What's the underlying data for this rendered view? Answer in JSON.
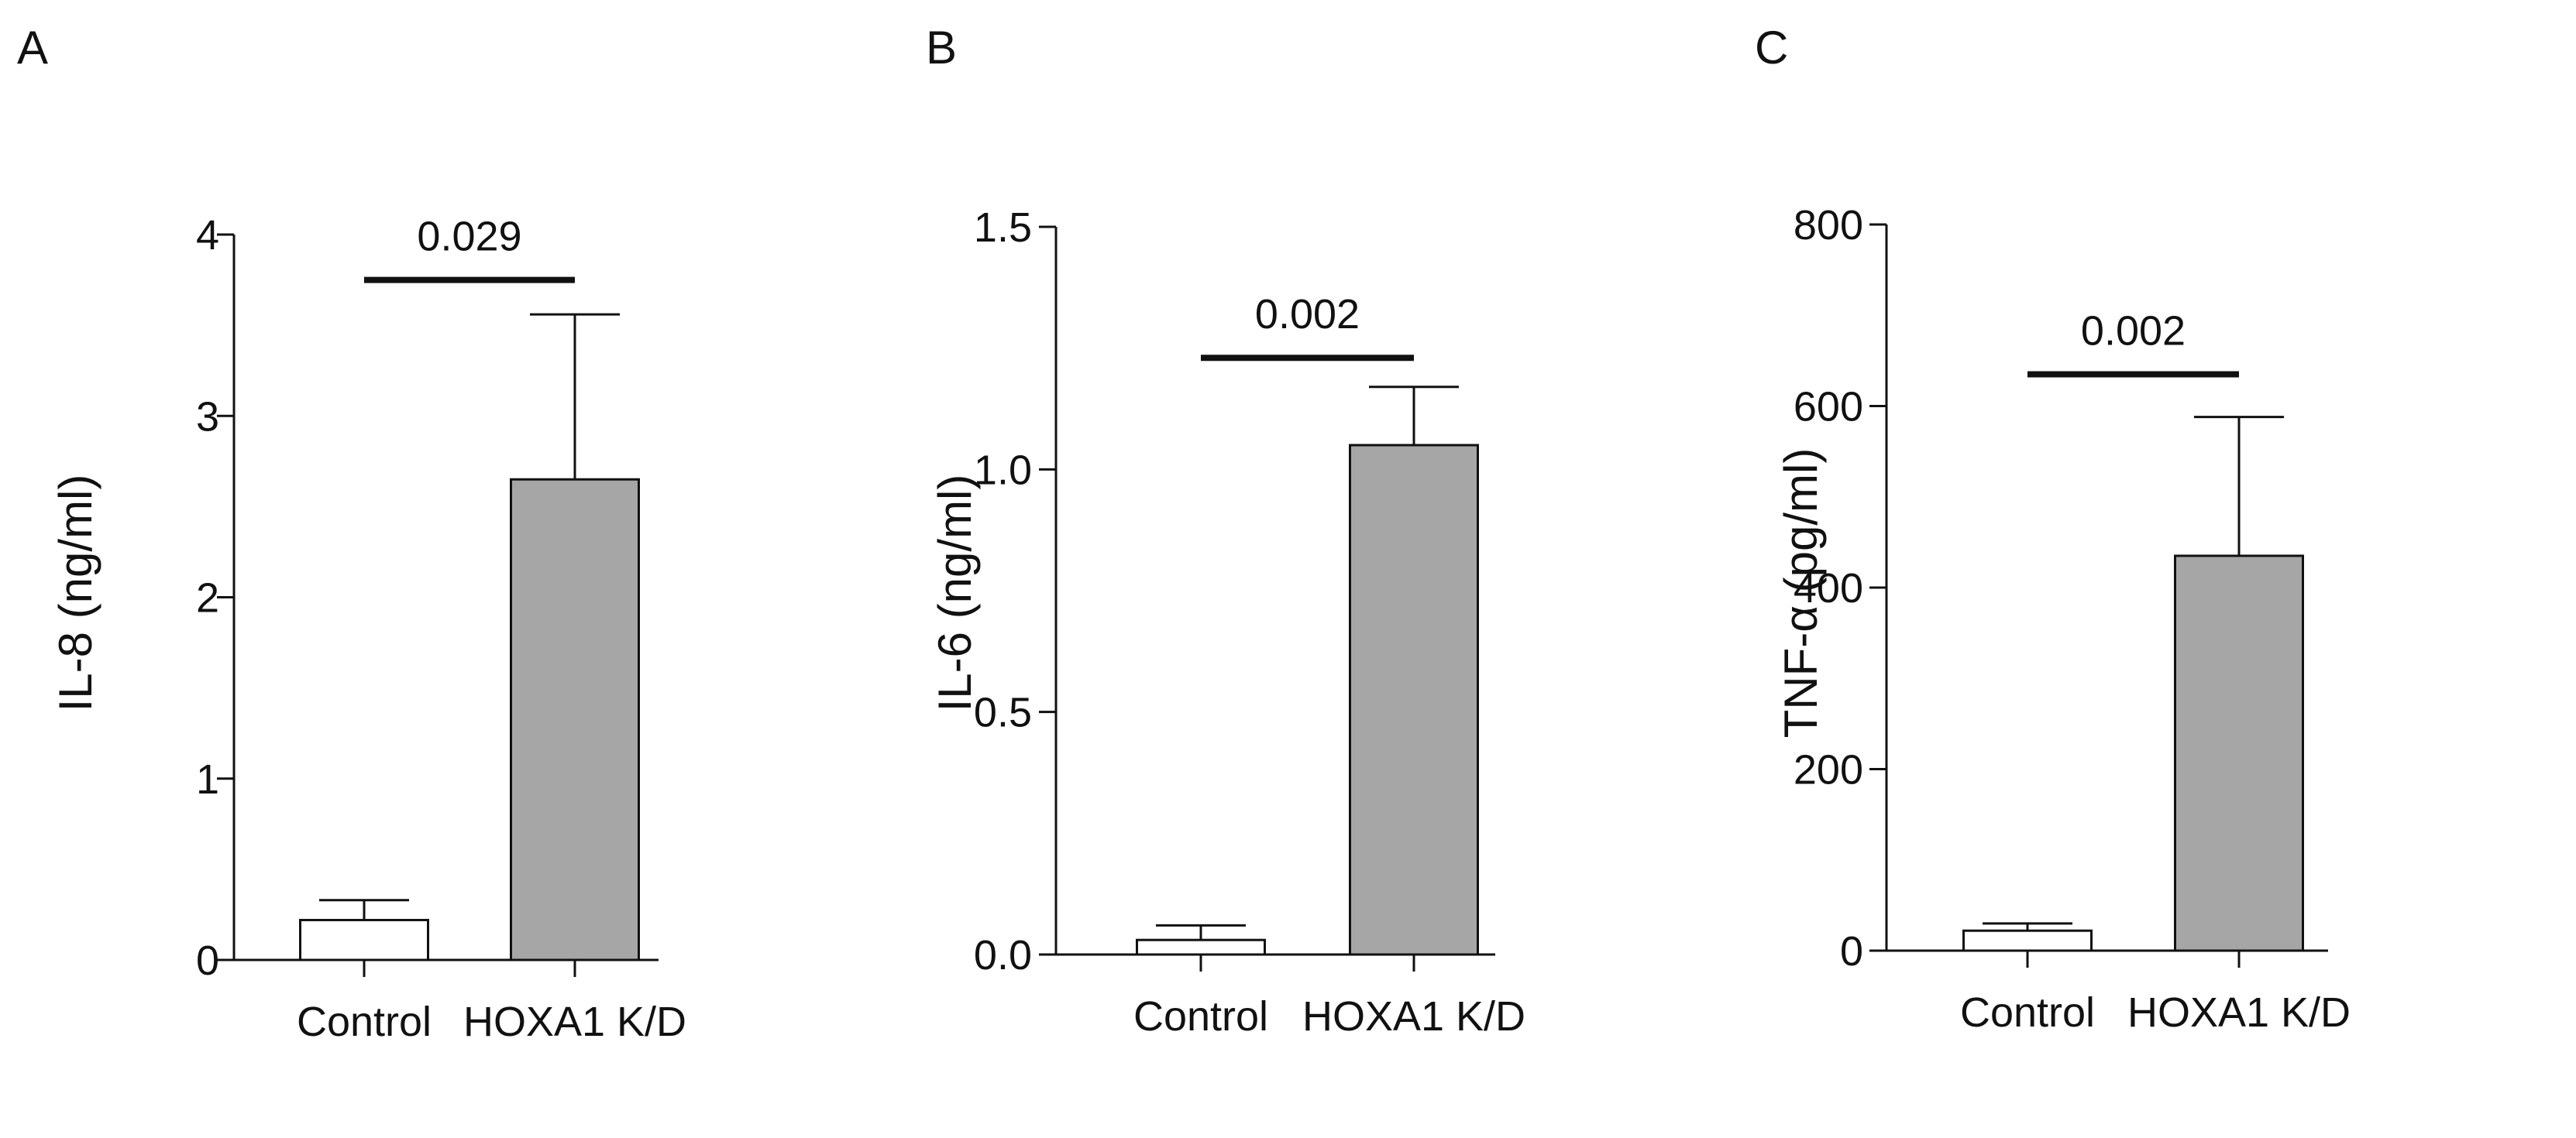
{
  "chart_data": [
    {
      "type": "bar",
      "panel_label": "A",
      "ylabel": "IL-8 (ng/ml)",
      "ylim": [
        0,
        4
      ],
      "yticks": [
        0,
        1,
        2,
        3,
        4
      ],
      "ytick_labels": [
        "0",
        "1",
        "2",
        "3",
        "4"
      ],
      "categories": [
        "Control",
        "HOXA1 K/D"
      ],
      "values": [
        0.22,
        2.65
      ],
      "errors": [
        0.11,
        0.91
      ],
      "bar_colors": [
        "#ffffff",
        "#a6a6a6"
      ],
      "significance": {
        "label": "0.029",
        "y": 3.75
      }
    },
    {
      "type": "bar",
      "panel_label": "B",
      "ylabel": "IL-6 (ng/ml)",
      "ylim": [
        0,
        1.5
      ],
      "yticks": [
        0,
        0.5,
        1.0,
        1.5
      ],
      "ytick_labels": [
        "0.0",
        "0.5",
        "1.0",
        "1.5"
      ],
      "categories": [
        "Control",
        "HOXA1 K/D"
      ],
      "values": [
        0.03,
        1.05
      ],
      "errors": [
        0.03,
        0.12
      ],
      "bar_colors": [
        "#ffffff",
        "#a6a6a6"
      ],
      "significance": {
        "label": "0.002",
        "y": 1.23
      }
    },
    {
      "type": "bar",
      "panel_label": "C",
      "ylabel": "TNF-α (pg/ml)",
      "ylim": [
        0,
        800
      ],
      "yticks": [
        0,
        200,
        400,
        600,
        800
      ],
      "ytick_labels": [
        "0",
        "200",
        "400",
        "600",
        "800"
      ],
      "categories": [
        "Control",
        "HOXA1 K/D"
      ],
      "values": [
        22,
        435
      ],
      "errors": [
        8,
        153
      ],
      "bar_colors": [
        "#ffffff",
        "#a6a6a6"
      ],
      "significance": {
        "label": "0.002",
        "y": 635
      }
    }
  ]
}
